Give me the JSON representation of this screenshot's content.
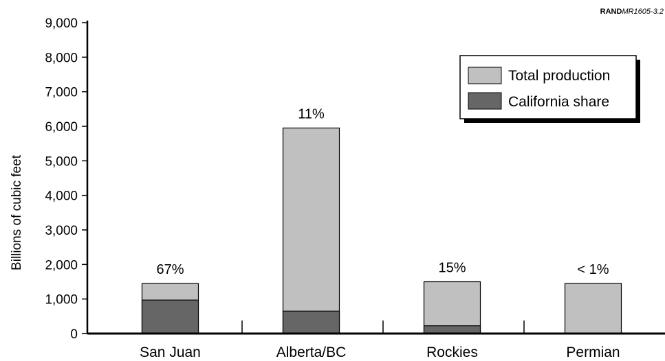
{
  "credit": {
    "org": "RAND",
    "code": "MR1605-3.2"
  },
  "chart_data": {
    "type": "bar",
    "stacked": true,
    "ylabel": "Billions of cubic feet",
    "xlabel": "",
    "ylim": [
      0,
      9000
    ],
    "yticks": [
      "0",
      "1,000",
      "2,000",
      "3,000",
      "4,000",
      "5,000",
      "6,000",
      "7,000",
      "8,000",
      "9,000"
    ],
    "ytick_values": [
      0,
      1000,
      2000,
      3000,
      4000,
      5000,
      6000,
      7000,
      8000,
      9000
    ],
    "categories": [
      "San Juan",
      "Alberta/BC",
      "Rockies",
      "Permian"
    ],
    "series": [
      {
        "name": "Total production",
        "values": [
          1450,
          5950,
          1500,
          1450
        ],
        "color": "#c0c0c0"
      },
      {
        "name": "California share",
        "values": [
          970,
          650,
          225,
          10
        ],
        "color": "#666666"
      }
    ],
    "annotations": [
      "67%",
      "11%",
      "15%",
      "< 1%"
    ],
    "legend": {
      "placement": "top-right"
    },
    "grid": false
  }
}
